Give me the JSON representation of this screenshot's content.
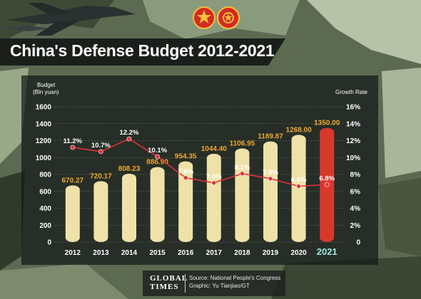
{
  "header": {
    "title": "China's Defense Budget 2012-2021"
  },
  "footer": {
    "logo_line1": "GLOBAL",
    "logo_line2": "TIMES",
    "source": "Source: National People's Congress",
    "graphic": "Graphic: Yu Tianjiao/GT"
  },
  "colors": {
    "bar": "#efe2a8",
    "bar_highlight": "#d8382c",
    "value_label": "#f0a830",
    "rate_line": "#e0303a",
    "axis_text": "#ffffff"
  },
  "chart_data": {
    "type": "bar",
    "title": "China's Defense Budget 2012-2021",
    "categories": [
      "2012",
      "2013",
      "2014",
      "2015",
      "2016",
      "2017",
      "2018",
      "2019",
      "2020",
      "2021"
    ],
    "series": [
      {
        "values": [
          670.27,
          720.17,
          808.23,
          886.9,
          954.35,
          1044.4,
          1106.95,
          1189.87,
          1268.0,
          1350.0
        ]
      },
      {
        "values": [
          11.2,
          10.7,
          12.2,
          10.1,
          7.6,
          7.0,
          8.1,
          7.5,
          6.6,
          6.8
        ]
      }
    ],
    "bar_labels": [
      "670.27",
      "720.17",
      "808.23",
      "886.90",
      "954.35",
      "1044.40",
      "1106.95",
      "1189.87",
      "1268.00",
      "1350.00"
    ],
    "rate_labels": [
      "11.2%",
      "10.7%",
      "12.2%",
      "10.1%",
      "7.6%",
      "7.0%",
      "8.1%",
      "7.5%",
      "6.6%",
      "6.8%"
    ],
    "ylabel_line1": "Budget",
    "ylabel_line2": "(Bln yuan)",
    "ylabel_right": "Growth Rate",
    "ylim": [
      0,
      1600
    ],
    "ylim_right": [
      0,
      16
    ],
    "yticks": [
      "0",
      "200",
      "400",
      "600",
      "800",
      "1000",
      "1200",
      "1400",
      "1600"
    ],
    "yticks_right": [
      "0",
      "2%",
      "4%",
      "6%",
      "8%",
      "10%",
      "12%",
      "14%",
      "16%"
    ],
    "highlight_category": "2021"
  }
}
